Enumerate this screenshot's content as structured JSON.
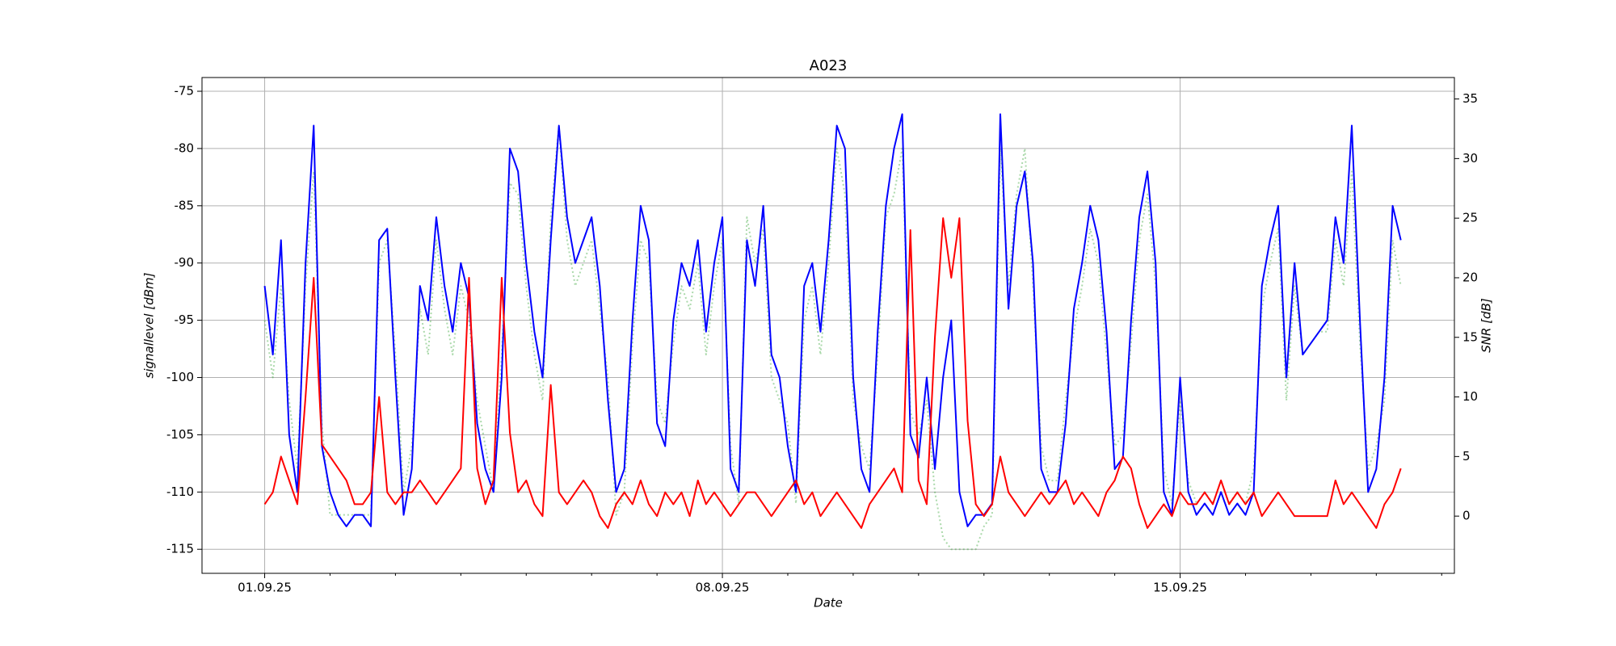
{
  "chart_data": {
    "type": "line",
    "title": "A023",
    "xlabel": "Date",
    "ylabel": "signallevel [dBm]",
    "y2label": "SNR [dB]",
    "x": [
      "2025-09-01T00:00",
      "2025-09-01T03:00",
      "2025-09-01T06:00",
      "2025-09-01T09:00",
      "2025-09-01T12:00",
      "2025-09-01T15:00",
      "2025-09-01T18:00",
      "2025-09-01T21:00",
      "2025-09-02T00:00",
      "2025-09-02T03:00",
      "2025-09-02T06:00",
      "2025-09-02T09:00",
      "2025-09-02T12:00",
      "2025-09-02T15:00",
      "2025-09-02T18:00",
      "2025-09-02T21:00",
      "2025-09-03T00:00",
      "2025-09-03T03:00",
      "2025-09-03T06:00",
      "2025-09-03T09:00",
      "2025-09-03T12:00",
      "2025-09-03T15:00",
      "2025-09-03T18:00",
      "2025-09-03T21:00",
      "2025-09-04T00:00",
      "2025-09-04T03:00",
      "2025-09-04T06:00",
      "2025-09-04T09:00",
      "2025-09-04T12:00",
      "2025-09-04T15:00",
      "2025-09-04T18:00",
      "2025-09-04T21:00",
      "2025-09-05T00:00",
      "2025-09-05T03:00",
      "2025-09-05T06:00",
      "2025-09-05T09:00",
      "2025-09-05T12:00",
      "2025-09-05T15:00",
      "2025-09-05T18:00",
      "2025-09-05T21:00",
      "2025-09-06T00:00",
      "2025-09-06T03:00",
      "2025-09-06T06:00",
      "2025-09-06T09:00",
      "2025-09-06T12:00",
      "2025-09-06T15:00",
      "2025-09-06T18:00",
      "2025-09-06T21:00",
      "2025-09-07T00:00",
      "2025-09-07T03:00",
      "2025-09-07T06:00",
      "2025-09-07T09:00",
      "2025-09-07T12:00",
      "2025-09-07T15:00",
      "2025-09-07T18:00",
      "2025-09-07T21:00",
      "2025-09-08T00:00",
      "2025-09-08T03:00",
      "2025-09-08T06:00",
      "2025-09-08T09:00",
      "2025-09-08T12:00",
      "2025-09-08T15:00",
      "2025-09-08T18:00",
      "2025-09-08T21:00",
      "2025-09-09T00:00",
      "2025-09-09T03:00",
      "2025-09-09T06:00",
      "2025-09-09T09:00",
      "2025-09-09T12:00",
      "2025-09-09T15:00",
      "2025-09-09T18:00",
      "2025-09-09T21:00",
      "2025-09-10T00:00",
      "2025-09-10T03:00",
      "2025-09-10T06:00",
      "2025-09-10T09:00",
      "2025-09-10T12:00",
      "2025-09-10T15:00",
      "2025-09-10T18:00",
      "2025-09-10T21:00",
      "2025-09-11T00:00",
      "2025-09-11T03:00",
      "2025-09-11T06:00",
      "2025-09-11T09:00",
      "2025-09-11T12:00",
      "2025-09-11T15:00",
      "2025-09-11T18:00",
      "2025-09-11T21:00",
      "2025-09-12T00:00",
      "2025-09-12T03:00",
      "2025-09-12T06:00",
      "2025-09-12T09:00",
      "2025-09-12T12:00",
      "2025-09-12T15:00",
      "2025-09-12T18:00",
      "2025-09-12T21:00",
      "2025-09-13T00:00",
      "2025-09-13T03:00",
      "2025-09-13T06:00",
      "2025-09-13T09:00",
      "2025-09-13T12:00",
      "2025-09-13T15:00",
      "2025-09-13T18:00",
      "2025-09-13T21:00",
      "2025-09-14T00:00",
      "2025-09-14T03:00",
      "2025-09-14T06:00",
      "2025-09-14T09:00",
      "2025-09-14T12:00",
      "2025-09-14T15:00",
      "2025-09-14T18:00",
      "2025-09-14T21:00",
      "2025-09-15T00:00",
      "2025-09-15T03:00",
      "2025-09-15T06:00",
      "2025-09-15T09:00",
      "2025-09-15T12:00",
      "2025-09-15T15:00",
      "2025-09-15T18:00",
      "2025-09-15T21:00",
      "2025-09-16T00:00",
      "2025-09-16T03:00",
      "2025-09-16T06:00",
      "2025-09-16T09:00",
      "2025-09-16T12:00",
      "2025-09-16T15:00",
      "2025-09-16T18:00",
      "2025-09-16T21:00",
      "2025-09-17T00:00",
      "2025-09-17T03:00",
      "2025-09-17T06:00",
      "2025-09-17T09:00",
      "2025-09-17T12:00",
      "2025-09-17T15:00",
      "2025-09-17T18:00",
      "2025-09-17T21:00",
      "2025-09-18T00:00",
      "2025-09-18T03:00",
      "2025-09-18T06:00",
      "2025-09-18T09:00"
    ],
    "series": [
      {
        "color": "#2ca02c",
        "linestyle": "dotted",
        "opacity": 0.4,
        "axis": "y",
        "values": [
          -95,
          -100,
          -92,
          -102,
          -108,
          -92,
          -82,
          -104,
          -112,
          -112,
          -112,
          -112,
          -112,
          -112,
          -90,
          -88,
          -98,
          -110,
          -106,
          -94,
          -98,
          -88,
          -94,
          -98,
          -92,
          -95,
          -102,
          -106,
          -110,
          -98,
          -83,
          -84,
          -92,
          -98,
          -102,
          -86,
          -78,
          -88,
          -92,
          -90,
          -88,
          -94,
          -100,
          -112,
          -110,
          -97,
          -88,
          -90,
          -102,
          -104,
          -97,
          -92,
          -94,
          -90,
          -98,
          -92,
          -88,
          -106,
          -111,
          -86,
          -90,
          -87,
          -100,
          -102,
          -104,
          -111,
          -95,
          -92,
          -98,
          -90,
          -80,
          -84,
          -102,
          -106,
          -108,
          -98,
          -86,
          -84,
          -80,
          -103,
          -105,
          -102,
          -110,
          -114,
          -115,
          -115,
          -115,
          -115,
          -113,
          -112,
          -80,
          -92,
          -84,
          -80,
          -92,
          -106,
          -109,
          -109,
          -102,
          -96,
          -92,
          -87,
          -90,
          -98,
          -106,
          -105,
          -97,
          -88,
          -84,
          -92,
          -108,
          -111,
          -102,
          -109,
          -111,
          -110,
          -111,
          -109,
          -111,
          -110,
          -111,
          -108,
          -94,
          -90,
          -87,
          -102,
          -92,
          -98,
          -97,
          -96,
          -96,
          -88,
          -92,
          -82,
          -97,
          -108,
          -106,
          -102,
          -88,
          -92
        ]
      },
      {
        "color": "#0000ff",
        "linestyle": "solid",
        "opacity": 1,
        "axis": "y",
        "values": [
          -92,
          -98,
          -88,
          -105,
          -110,
          -90,
          -78,
          -106,
          -110,
          -112,
          -113,
          -112,
          -112,
          -113,
          -88,
          -87,
          -100,
          -112,
          -108,
          -92,
          -95,
          -86,
          -92,
          -96,
          -90,
          -93,
          -104,
          -108,
          -110,
          -100,
          -80,
          -82,
          -90,
          -96,
          -100,
          -88,
          -78,
          -86,
          -90,
          -88,
          -86,
          -92,
          -102,
          -110,
          -108,
          -95,
          -85,
          -88,
          -104,
          -106,
          -95,
          -90,
          -92,
          -88,
          -96,
          -90,
          -86,
          -108,
          -110,
          -88,
          -92,
          -85,
          -98,
          -100,
          -106,
          -110,
          -92,
          -90,
          -96,
          -88,
          -78,
          -80,
          -100,
          -108,
          -110,
          -96,
          -85,
          -80,
          -77,
          -105,
          -107,
          -100,
          -108,
          -100,
          -95,
          -110,
          -113,
          -112,
          -112,
          -111,
          -77,
          -94,
          -85,
          -82,
          -90,
          -108,
          -110,
          -110,
          -104,
          -94,
          -90,
          -85,
          -88,
          -96,
          -108,
          -107,
          -95,
          -86,
          -82,
          -90,
          -110,
          -112,
          -100,
          -110,
          -112,
          -111,
          -112,
          -110,
          -112,
          -111,
          -112,
          -110,
          -92,
          -88,
          -85,
          -100,
          -90,
          -98,
          -97,
          -96,
          -95,
          -86,
          -90,
          -78,
          -95,
          -110,
          -108,
          -100,
          -85,
          -88
        ]
      },
      {
        "color": "#ff0000",
        "linestyle": "solid",
        "opacity": 1,
        "axis": "y2",
        "values": [
          1,
          2,
          5,
          3,
          1,
          10,
          20,
          6,
          5,
          4,
          3,
          1,
          1,
          2,
          10,
          2,
          1,
          2,
          2,
          3,
          2,
          1,
          2,
          3,
          4,
          20,
          4,
          1,
          3,
          20,
          7,
          2,
          3,
          1,
          0,
          11,
          2,
          1,
          2,
          3,
          2,
          0,
          -1,
          1,
          2,
          1,
          3,
          1,
          0,
          2,
          1,
          2,
          0,
          3,
          1,
          2,
          1,
          0,
          1,
          2,
          2,
          1,
          0,
          1,
          2,
          3,
          1,
          2,
          0,
          1,
          2,
          1,
          0,
          -1,
          1,
          2,
          3,
          4,
          2,
          24,
          3,
          1,
          15,
          25,
          20,
          25,
          8,
          1,
          0,
          1,
          5,
          2,
          1,
          0,
          1,
          2,
          1,
          2,
          3,
          1,
          2,
          1,
          0,
          2,
          3,
          5,
          4,
          1,
          -1,
          0,
          1,
          0,
          2,
          1,
          1,
          2,
          1,
          3,
          1,
          2,
          1,
          2,
          0,
          1,
          2,
          1,
          0,
          0,
          0,
          0,
          0,
          3,
          1,
          2,
          1,
          0,
          -1,
          1,
          2,
          4
        ]
      }
    ],
    "xlim": [
      "2025-08-31T01:00",
      "2025-09-19T04:40"
    ],
    "xticks": [
      {
        "value": "2025-09-01T00:00",
        "label": "01.09.25"
      },
      {
        "value": "2025-09-08T00:00",
        "label": "08.09.25"
      },
      {
        "value": "2025-09-15T00:00",
        "label": "15.09.25"
      }
    ],
    "xminorticks": [
      "2025-09-02T00:00",
      "2025-09-03T00:00",
      "2025-09-04T00:00",
      "2025-09-05T00:00",
      "2025-09-06T00:00",
      "2025-09-07T00:00",
      "2025-09-09T00:00",
      "2025-09-10T00:00",
      "2025-09-11T00:00",
      "2025-09-12T00:00",
      "2025-09-13T00:00",
      "2025-09-14T00:00",
      "2025-09-16T00:00",
      "2025-09-17T00:00",
      "2025-09-18T00:00",
      "2025-09-19T00:00"
    ],
    "ylim": [
      -117.1,
      -73.8
    ],
    "yticks": [
      -115,
      -110,
      -105,
      -100,
      -95,
      -90,
      -85,
      -80,
      -75
    ],
    "y2lim": [
      -4.8,
      36.8
    ],
    "y2ticks": [
      0,
      5,
      10,
      15,
      20,
      25,
      30,
      35
    ],
    "grid": true
  }
}
